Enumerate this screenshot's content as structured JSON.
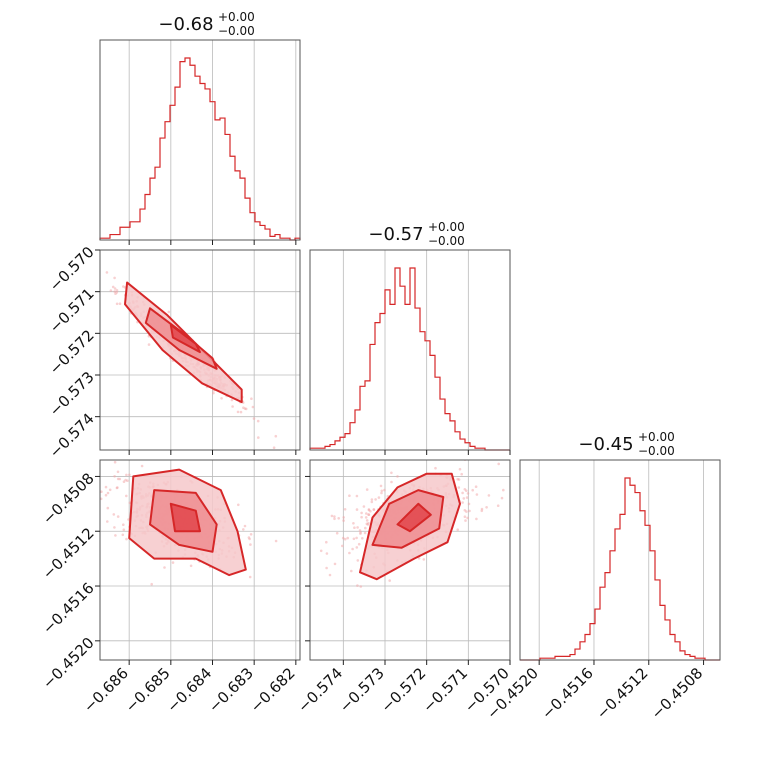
{
  "colors": {
    "series": "#d62728",
    "fill_light": "#f6c8ca",
    "fill_mid": "#ee8d91",
    "fill_dark": "#e2454b",
    "grid": "#bbbbbb"
  },
  "chart_data": {
    "type": "corner",
    "parameters": [
      {
        "id": "p0",
        "title": {
          "value": "−0.68",
          "upper": "+0.00",
          "lower": "−0.00"
        },
        "range": [
          -0.6867,
          -0.6819
        ],
        "ticks": [
          -0.686,
          -0.685,
          -0.684,
          -0.683,
          -0.682
        ],
        "tick_labels": [
          "−0.686",
          "−0.685",
          "−0.684",
          "−0.683",
          "−0.682"
        ],
        "hist": {
          "start": -0.6867,
          "bin_width": 0.00012,
          "counts": [
            1,
            1,
            3,
            3,
            7,
            7,
            10,
            10,
            17,
            25,
            34,
            40,
            56,
            65,
            74,
            84,
            98,
            100,
            96,
            90,
            86,
            83,
            76,
            66,
            67,
            58,
            46,
            38,
            34,
            23,
            15,
            10,
            8,
            6,
            2,
            3,
            1,
            1,
            0,
            1
          ]
        }
      },
      {
        "id": "p1",
        "title": {
          "value": "−0.57",
          "upper": "+0.00",
          "lower": "−0.00"
        },
        "range": [
          -0.5748,
          -0.57
        ],
        "ticks": [
          -0.574,
          -0.573,
          -0.572,
          -0.571,
          -0.57
        ],
        "tick_labels": [
          "−0.574",
          "−0.573",
          "−0.572",
          "−0.571",
          "−0.570"
        ],
        "hist": {
          "start": -0.5748,
          "bin_width": 0.00012,
          "counts": [
            1,
            1,
            1,
            2,
            3,
            5,
            7,
            9,
            15,
            22,
            35,
            38,
            58,
            70,
            75,
            88,
            80,
            100,
            90,
            80,
            100,
            78,
            65,
            60,
            52,
            40,
            28,
            20,
            16,
            10,
            6,
            4,
            2,
            1,
            1,
            0,
            0,
            0,
            0,
            0
          ]
        }
      },
      {
        "id": "p2",
        "title": {
          "value": "−0.45",
          "upper": "+0.00",
          "lower": "−0.00"
        },
        "range": [
          -0.45214,
          -0.45068
        ],
        "ticks": [
          -0.452,
          -0.4516,
          -0.4512,
          -0.4508
        ],
        "tick_labels": [
          "−0.4520",
          "−0.4516",
          "−0.4512",
          "−0.4508"
        ],
        "hist": {
          "start": -0.45214,
          "bin_width": 3.65e-05,
          "counts": [
            0,
            0,
            0,
            0,
            1,
            1,
            1,
            2,
            2,
            2,
            3,
            6,
            10,
            14,
            20,
            28,
            40,
            48,
            60,
            72,
            80,
            100,
            96,
            92,
            82,
            74,
            60,
            44,
            30,
            22,
            14,
            10,
            5,
            3,
            2,
            1,
            1,
            0,
            0,
            0
          ]
        }
      }
    ],
    "pairs": [
      {
        "x": "p0",
        "y": "p1",
        "label": "p1-vs-p0",
        "mean": [
          -0.6847,
          -0.5724
        ],
        "std": [
          0.0008,
          0.00075
        ],
        "corr": -0.97,
        "contours": [
          {
            "level": "outer",
            "points": [
              [
                -0.68605,
                -0.57078
              ],
              [
                -0.6851,
                -0.57155
              ],
              [
                -0.6842,
                -0.57245
              ],
              [
                -0.6833,
                -0.57335
              ],
              [
                -0.6833,
                -0.57365
              ],
              [
                -0.68425,
                -0.5732
              ],
              [
                -0.6852,
                -0.5724
              ],
              [
                -0.6861,
                -0.5713
              ]
            ]
          },
          {
            "level": "mid",
            "points": [
              [
                -0.6855,
                -0.5714
              ],
              [
                -0.6847,
                -0.572
              ],
              [
                -0.684,
                -0.5726
              ],
              [
                -0.6839,
                -0.57285
              ],
              [
                -0.6848,
                -0.5724
              ],
              [
                -0.6856,
                -0.57175
              ]
            ]
          },
          {
            "level": "inner",
            "points": [
              [
                -0.685,
                -0.5718
              ],
              [
                -0.6844,
                -0.57225
              ],
              [
                -0.6843,
                -0.57245
              ],
              [
                -0.68495,
                -0.5721
              ]
            ]
          }
        ]
      },
      {
        "x": "p0",
        "y": "p2",
        "label": "p2-vs-p0",
        "mean": [
          -0.685,
          -0.4511
        ],
        "std": [
          0.0008,
          0.00016
        ],
        "corr": -0.55,
        "contours": [
          {
            "level": "outer",
            "points": [
              [
                -0.6859,
                -0.4508
              ],
              [
                -0.6848,
                -0.45075
              ],
              [
                -0.6838,
                -0.4509
              ],
              [
                -0.6834,
                -0.4512
              ],
              [
                -0.6832,
                -0.45148
              ],
              [
                -0.6836,
                -0.45152
              ],
              [
                -0.6844,
                -0.4514
              ],
              [
                -0.6854,
                -0.4514
              ],
              [
                -0.686,
                -0.45125
              ]
            ]
          },
          {
            "level": "mid",
            "points": [
              [
                -0.6854,
                -0.4509
              ],
              [
                -0.6844,
                -0.45092
              ],
              [
                -0.6839,
                -0.45115
              ],
              [
                -0.684,
                -0.45135
              ],
              [
                -0.6848,
                -0.4513
              ],
              [
                -0.6855,
                -0.45115
              ]
            ]
          },
          {
            "level": "inner",
            "points": [
              [
                -0.685,
                -0.451
              ],
              [
                -0.6844,
                -0.45105
              ],
              [
                -0.6843,
                -0.4512
              ],
              [
                -0.6849,
                -0.4512
              ]
            ]
          }
        ]
      },
      {
        "x": "p1",
        "y": "p2",
        "label": "p2-vs-p1",
        "mean": [
          -0.5725,
          -0.4511
        ],
        "std": [
          0.00085,
          0.00016
        ],
        "corr": 0.55,
        "contours": [
          {
            "level": "outer",
            "points": [
              [
                -0.5736,
                -0.4515
              ],
              [
                -0.5733,
                -0.4511
              ],
              [
                -0.5727,
                -0.45088
              ],
              [
                -0.572,
                -0.45078
              ],
              [
                -0.5714,
                -0.45078
              ],
              [
                -0.5712,
                -0.451
              ],
              [
                -0.5715,
                -0.45128
              ],
              [
                -0.5723,
                -0.4514
              ],
              [
                -0.5732,
                -0.45155
              ]
            ]
          },
          {
            "level": "mid",
            "points": [
              [
                -0.5733,
                -0.4513
              ],
              [
                -0.5729,
                -0.451
              ],
              [
                -0.5722,
                -0.4509
              ],
              [
                -0.5716,
                -0.45095
              ],
              [
                -0.5717,
                -0.45118
              ],
              [
                -0.5726,
                -0.45132
              ]
            ]
          },
          {
            "level": "inner",
            "points": [
              [
                -0.5727,
                -0.45115
              ],
              [
                -0.5722,
                -0.451
              ],
              [
                -0.5719,
                -0.45108
              ],
              [
                -0.5724,
                -0.4512
              ]
            ]
          }
        ]
      }
    ],
    "grid": true,
    "legend": "none"
  }
}
